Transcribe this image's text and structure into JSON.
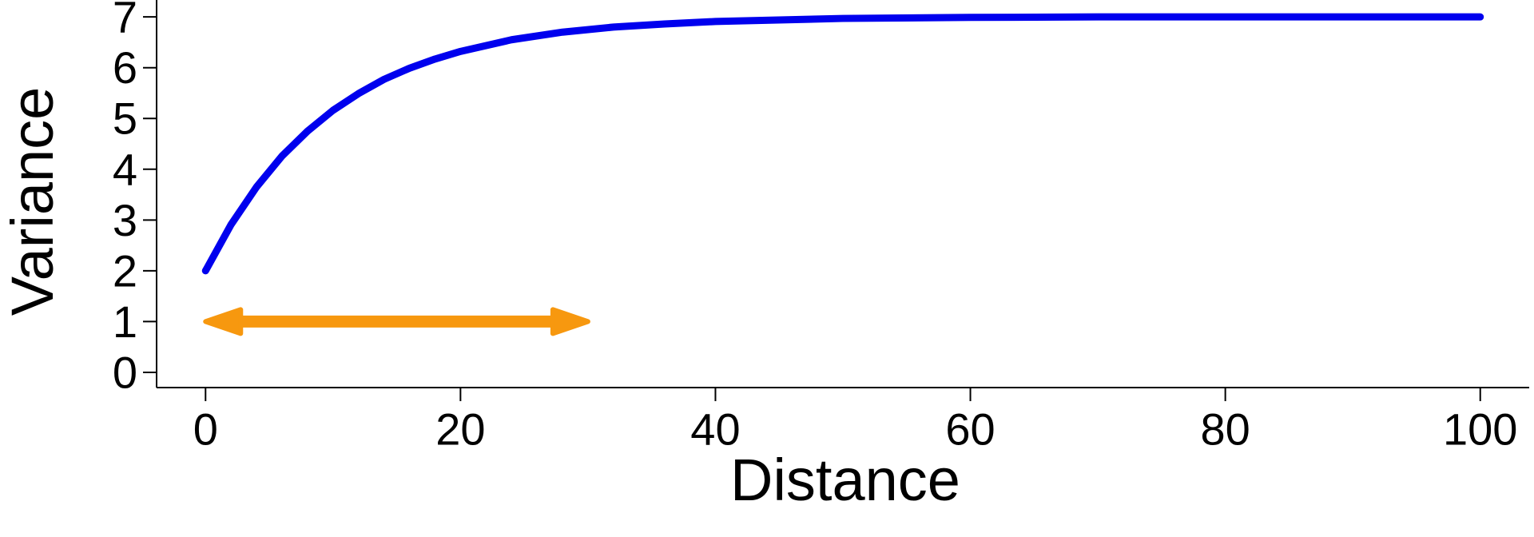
{
  "chart_data": {
    "type": "line",
    "xlabel": "Distance",
    "ylabel": "Variance",
    "x": [
      0,
      2,
      4,
      6,
      8,
      10,
      12,
      14,
      16,
      18,
      20,
      24,
      28,
      32,
      36,
      40,
      50,
      60,
      70,
      80,
      100
    ],
    "series": [
      {
        "color": "#0000ee",
        "values": [
          2,
          2.91,
          3.65,
          4.26,
          4.75,
          5.16,
          5.49,
          5.77,
          5.99,
          6.17,
          6.32,
          6.55,
          6.7,
          6.8,
          6.86,
          6.91,
          6.97,
          6.99,
          7.0,
          7.0,
          7.0
        ]
      }
    ],
    "arrow": {
      "x": [
        0,
        30
      ],
      "y": 1,
      "color": "#f7980f"
    },
    "xlim": [
      -3.84,
      103.84
    ],
    "ylim": [
      -0.3,
      7.27
    ],
    "xticks": [
      0,
      20,
      40,
      60,
      80,
      100
    ],
    "yticks": [
      0,
      1,
      2,
      3,
      4,
      5,
      6,
      7
    ]
  }
}
